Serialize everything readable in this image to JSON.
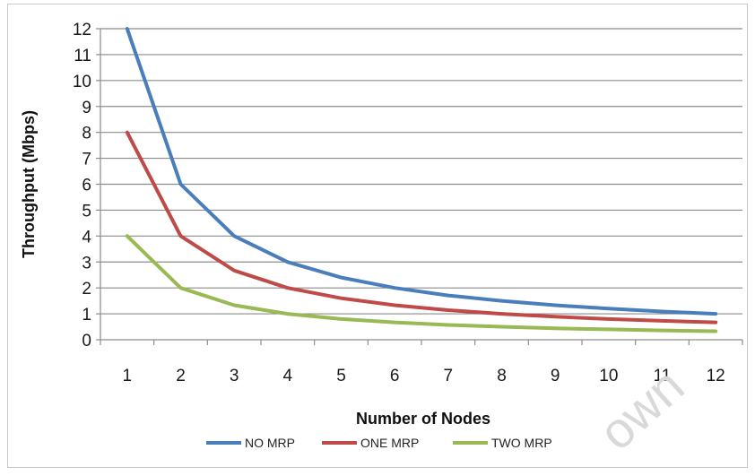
{
  "chart_data": {
    "type": "line",
    "xlabel": "Number of Nodes",
    "ylabel": "Throughput (Mbps)",
    "x": [
      1,
      2,
      3,
      4,
      5,
      6,
      7,
      8,
      9,
      10,
      11,
      12
    ],
    "ylim": [
      0,
      12
    ],
    "yticks": [
      0,
      1,
      2,
      3,
      4,
      5,
      6,
      7,
      8,
      9,
      10,
      11,
      12
    ],
    "grid": true,
    "legend_position": "bottom",
    "series": [
      {
        "name": "NO MRP",
        "color": "#4a7ebb",
        "values": [
          12,
          6,
          4,
          3,
          2.4,
          2,
          1.71,
          1.5,
          1.33,
          1.2,
          1.09,
          1
        ]
      },
      {
        "name": "ONE MRP",
        "color": "#be4b48",
        "values": [
          8,
          4,
          2.67,
          2,
          1.6,
          1.33,
          1.14,
          1,
          0.89,
          0.8,
          0.73,
          0.67
        ]
      },
      {
        "name": "TWO MRP",
        "color": "#98b954",
        "values": [
          4,
          2,
          1.33,
          1,
          0.8,
          0.67,
          0.57,
          0.5,
          0.44,
          0.4,
          0.36,
          0.33
        ]
      }
    ]
  },
  "watermark": "own"
}
